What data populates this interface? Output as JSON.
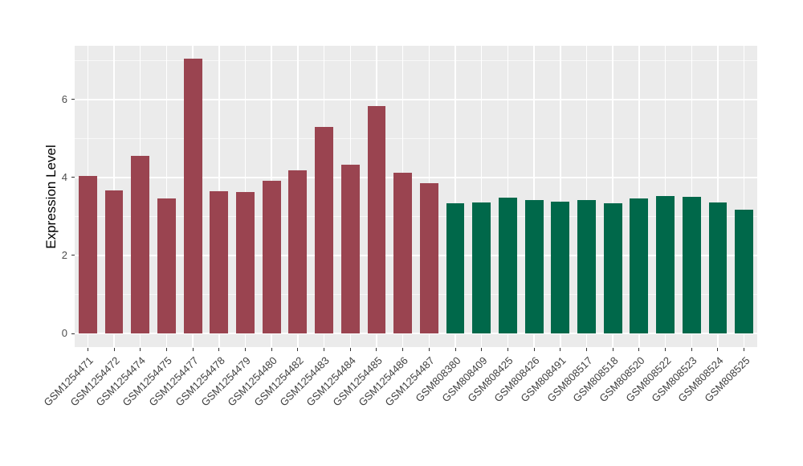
{
  "chart_data": {
    "type": "bar",
    "title": "",
    "xlabel": "",
    "ylabel": "Expression Level",
    "legend": "none",
    "grid": "on",
    "panel_background": "#EBEBEB",
    "gridline_color": "#FFFFFF",
    "tick_color": "#333333",
    "axis_text_color": "#404040",
    "x_label_angle": 45,
    "yticks": [
      0,
      2,
      4,
      6
    ],
    "yticks_minor": [
      1,
      3,
      5,
      7
    ],
    "ylim": [
      -0.35,
      7.38
    ],
    "bar_width_frac": 0.7,
    "categories": [
      "GSM1254471",
      "GSM1254472",
      "GSM1254474",
      "GSM1254475",
      "GSM1254477",
      "GSM1254478",
      "GSM1254479",
      "GSM1254480",
      "GSM1254482",
      "GSM1254483",
      "GSM1254484",
      "GSM1254485",
      "GSM1254486",
      "GSM1254487",
      "GSM808380",
      "GSM808409",
      "GSM808425",
      "GSM808426",
      "GSM808491",
      "GSM808517",
      "GSM808518",
      "GSM808520",
      "GSM808522",
      "GSM808523",
      "GSM808524",
      "GSM808525"
    ],
    "values": [
      4.05,
      3.66,
      4.55,
      3.47,
      7.04,
      3.65,
      3.63,
      3.92,
      4.19,
      5.3,
      4.33,
      5.83,
      4.12,
      3.86,
      3.33,
      3.37,
      3.48,
      3.42,
      3.38,
      3.42,
      3.35,
      3.47,
      3.53,
      3.51,
      3.37,
      3.18
    ],
    "groups": [
      0,
      0,
      0,
      0,
      0,
      0,
      0,
      0,
      0,
      0,
      0,
      0,
      0,
      0,
      1,
      1,
      1,
      1,
      1,
      1,
      1,
      1,
      1,
      1,
      1,
      1
    ],
    "group_colors": [
      "#9A4450",
      "#00684A"
    ]
  }
}
